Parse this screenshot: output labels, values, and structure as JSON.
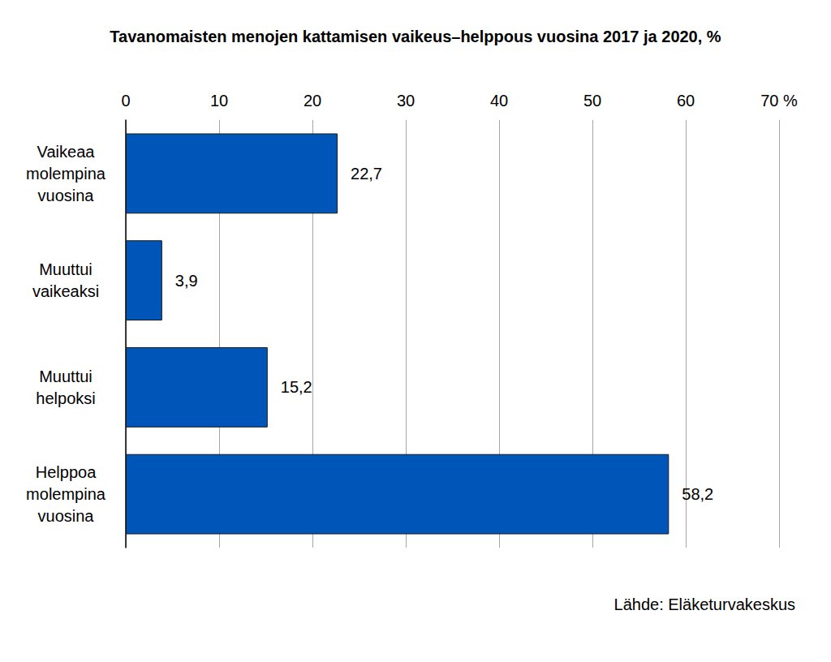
{
  "chart_data": {
    "type": "bar",
    "title": "Tavanomaisten menojen kattamisen vaikeus–helppous vuosina 2017 ja 2020, %",
    "source": "Lähde: Eläketurvakeskus",
    "orientation": "horizontal",
    "categories": [
      "Vaikeaa molempina vuosina",
      "Muuttui vaikeaksi",
      "Muuttui helpoksi",
      "Helppoa molempina vuosina"
    ],
    "values": [
      22.7,
      3.9,
      15.2,
      58.2
    ],
    "value_labels": [
      "22,7",
      "3,9",
      "15,2",
      "58,2"
    ],
    "color": "#0055b8",
    "xlim": [
      0,
      70
    ],
    "xticks": [
      0,
      10,
      20,
      30,
      40,
      50,
      60,
      {
        "value": 70,
        "label": "70 %"
      }
    ],
    "grid": true,
    "data_labels": true
  }
}
